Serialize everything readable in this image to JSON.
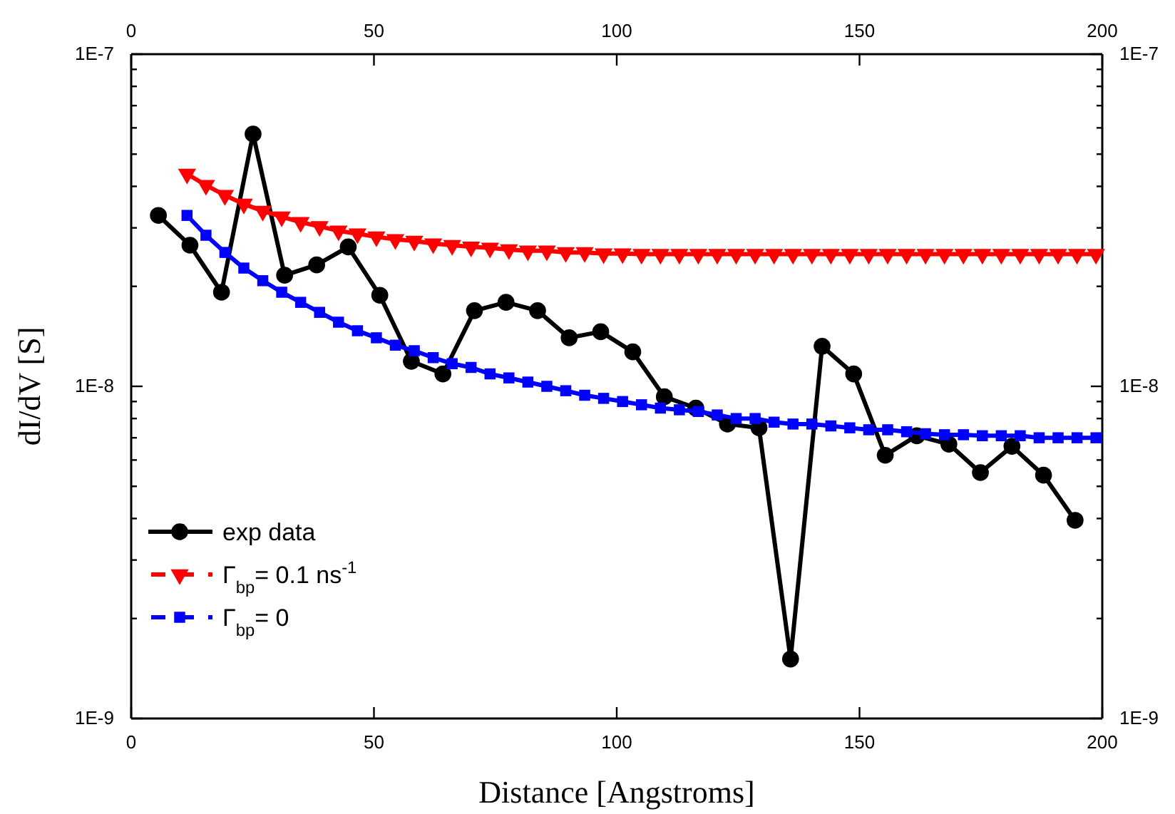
{
  "chart_data": {
    "type": "line",
    "xlabel": "Distance [Angstroms]",
    "ylabel": "dI/dV [S]",
    "log": "y",
    "legend": "bottom left",
    "xlim": [
      0,
      200
    ],
    "xticks": [
      0,
      50,
      100,
      150,
      200
    ],
    "x2lim": [
      0,
      200
    ],
    "x2ticks": [
      0,
      50,
      100,
      150,
      200
    ],
    "ylim": [
      1e-09,
      1e-07
    ],
    "yticks": [
      {
        "value": 1e-09,
        "label": "1E-9"
      },
      {
        "value": 2e-09,
        "label": null
      },
      {
        "value": 3e-09,
        "label": null
      },
      {
        "value": 4e-09,
        "label": null
      },
      {
        "value": 5e-09,
        "label": null
      },
      {
        "value": 6e-09,
        "label": null
      },
      {
        "value": 7e-09,
        "label": null
      },
      {
        "value": 8e-09,
        "label": null
      },
      {
        "value": 9e-09,
        "label": null
      },
      {
        "value": 1e-08,
        "label": "1E-8"
      },
      {
        "value": 2e-08,
        "label": null
      },
      {
        "value": 3e-08,
        "label": null
      },
      {
        "value": 4e-08,
        "label": null
      },
      {
        "value": 5e-08,
        "label": null
      },
      {
        "value": 6e-08,
        "label": null
      },
      {
        "value": 7e-08,
        "label": null
      },
      {
        "value": 8e-08,
        "label": null
      },
      {
        "value": 9e-08,
        "label": null
      },
      {
        "value": 1e-07,
        "label": "1E-7"
      }
    ],
    "line_style": "solid",
    "series": [
      {
        "name": "exp data",
        "color": "#000000",
        "marker": "circle",
        "x": [
          5.6,
          12.1,
          18.6,
          25.1,
          31.6,
          38.2,
          44.7,
          51.2,
          57.7,
          64.2,
          70.7,
          77.2,
          83.7,
          90.2,
          96.7,
          103.3,
          109.8,
          116.3,
          122.8,
          129.3,
          135.8,
          142.3,
          148.8,
          155.3,
          161.8,
          168.4,
          174.9,
          181.4,
          187.9,
          194.4
        ],
        "values": [
          3.27e-08,
          2.66e-08,
          1.92e-08,
          5.75e-08,
          2.16e-08,
          2.32e-08,
          2.63e-08,
          1.88e-08,
          1.19e-08,
          1.09e-08,
          1.69e-08,
          1.79e-08,
          1.69e-08,
          1.4e-08,
          1.46e-08,
          1.27e-08,
          9.3e-09,
          8.6e-09,
          7.7e-09,
          7.5e-09,
          1.51e-09,
          1.32e-08,
          1.09e-08,
          6.2e-09,
          7.1e-09,
          6.7e-09,
          5.5e-09,
          6.6e-09,
          5.4e-09,
          3.95e-09
        ]
      },
      {
        "name": "Γ$_{bp}$= 0.1 ns$^{-1}$",
        "color": "#ff0000",
        "marker": "triangle",
        "x": [
          11.5,
          15.4,
          19.3,
          23.2,
          27.1,
          31,
          34.9,
          38.8,
          42.7,
          46.6,
          50.5,
          54.4,
          58.3,
          62.2,
          66.1,
          70,
          73.9,
          77.8,
          81.7,
          85.6,
          89.5,
          93.4,
          97.3,
          101.2,
          105.1,
          109,
          112.9,
          116.8,
          120.7,
          124.6,
          128.5,
          132.4,
          136.3,
          140.2,
          144.1,
          148,
          151.9,
          155.8,
          159.7,
          163.6,
          167.5,
          171.4,
          175.3,
          179.2,
          183.1,
          187,
          190.9,
          194.8,
          198.7
        ],
        "values": [
          4.36e-08,
          4.03e-08,
          3.76e-08,
          3.54e-08,
          3.37e-08,
          3.24e-08,
          3.12e-08,
          3.03e-08,
          2.94e-08,
          2.88e-08,
          2.82e-08,
          2.77e-08,
          2.74e-08,
          2.69e-08,
          2.66e-08,
          2.63e-08,
          2.61e-08,
          2.58e-08,
          2.56e-08,
          2.56e-08,
          2.53e-08,
          2.53e-08,
          2.51e-08,
          2.51e-08,
          2.5e-08,
          2.5e-08,
          2.5e-08,
          2.5e-08,
          2.5e-08,
          2.5e-08,
          2.5e-08,
          2.5e-08,
          2.5e-08,
          2.5e-08,
          2.5e-08,
          2.5e-08,
          2.5e-08,
          2.5e-08,
          2.5e-08,
          2.5e-08,
          2.5e-08,
          2.5e-08,
          2.5e-08,
          2.5e-08,
          2.5e-08,
          2.5e-08,
          2.5e-08,
          2.5e-08,
          2.5e-08
        ]
      },
      {
        "name": "Γ$_{bp}$= 0",
        "color": "#0000ff",
        "marker": "square",
        "x": [
          11.5,
          15.4,
          19.3,
          23.2,
          27.1,
          31,
          34.9,
          38.8,
          42.7,
          46.6,
          50.5,
          54.4,
          58.3,
          62.2,
          66.1,
          70,
          73.9,
          77.8,
          81.7,
          85.6,
          89.5,
          93.4,
          97.3,
          101.2,
          105.1,
          109,
          112.9,
          116.8,
          120.7,
          124.6,
          128.5,
          132.4,
          136.3,
          140.2,
          144.1,
          148,
          151.9,
          155.8,
          159.7,
          163.6,
          167.5,
          171.4,
          175.3,
          179.2,
          183.1,
          187,
          190.9,
          194.8,
          198.7
        ],
        "values": [
          3.27e-08,
          2.85e-08,
          2.53e-08,
          2.27e-08,
          2.08e-08,
          1.92e-08,
          1.79e-08,
          1.67e-08,
          1.56e-08,
          1.47e-08,
          1.4e-08,
          1.33e-08,
          1.28e-08,
          1.22e-08,
          1.17e-08,
          1.14e-08,
          1.09e-08,
          1.06e-08,
          1.03e-08,
          1e-08,
          9.7e-09,
          9.4e-09,
          9.2e-09,
          9e-09,
          8.8e-09,
          8.6e-09,
          8.5e-09,
          8.4e-09,
          8.2e-09,
          8e-09,
          8e-09,
          7.8e-09,
          7.7e-09,
          7.7e-09,
          7.6e-09,
          7.5e-09,
          7.4e-09,
          7.4e-09,
          7.3e-09,
          7.2e-09,
          7.15e-09,
          7.15e-09,
          7.1e-09,
          7.1e-09,
          7.1e-09,
          7e-09,
          7e-09,
          7e-09,
          7e-09
        ]
      }
    ]
  }
}
